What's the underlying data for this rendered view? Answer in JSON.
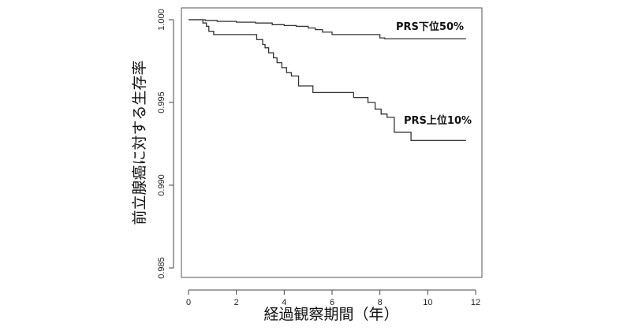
{
  "chart_data": {
    "type": "line",
    "xlabel": "経過観察期間（年）",
    "ylabel": "前立腺癌に対する生存率",
    "xlim": [
      0,
      12
    ],
    "ylim": [
      0.985,
      1.0
    ],
    "x_ticks": [
      "0",
      "2",
      "4",
      "6",
      "8",
      "10",
      "12"
    ],
    "y_ticks": [
      "0.985",
      "0.990",
      "0.995",
      "1.000"
    ],
    "grid": false,
    "step": true,
    "series": [
      {
        "name": "PRS下位50%",
        "color": "#333333",
        "x": [
          0,
          0.7,
          1.2,
          2.0,
          2.8,
          3.5,
          4.0,
          4.5,
          5.0,
          5.3,
          5.6,
          6.0,
          7.0,
          8.0,
          8.2,
          11.6
        ],
        "y": [
          1.0,
          0.99995,
          0.9999,
          0.99985,
          0.9998,
          0.9997,
          0.99965,
          0.9996,
          0.9995,
          0.9994,
          0.99925,
          0.9991,
          0.9991,
          0.9989,
          0.99885,
          0.99885
        ]
      },
      {
        "name": "PRS上位10%",
        "color": "#333333",
        "x": [
          0,
          0.6,
          0.75,
          0.85,
          1.05,
          2.85,
          3.1,
          3.2,
          3.35,
          3.55,
          3.7,
          3.9,
          4.1,
          4.3,
          4.6,
          5.2,
          6.9,
          7.5,
          7.8,
          8.05,
          8.3,
          8.6,
          9.3,
          11.6
        ],
        "y": [
          1.0,
          0.9998,
          0.9996,
          0.9993,
          0.9991,
          0.9988,
          0.9985,
          0.9983,
          0.998,
          0.9977,
          0.9974,
          0.9971,
          0.9968,
          0.9966,
          0.996,
          0.9956,
          0.9953,
          0.995,
          0.9946,
          0.9943,
          0.9941,
          0.9932,
          0.9927,
          0.9927
        ]
      }
    ]
  }
}
